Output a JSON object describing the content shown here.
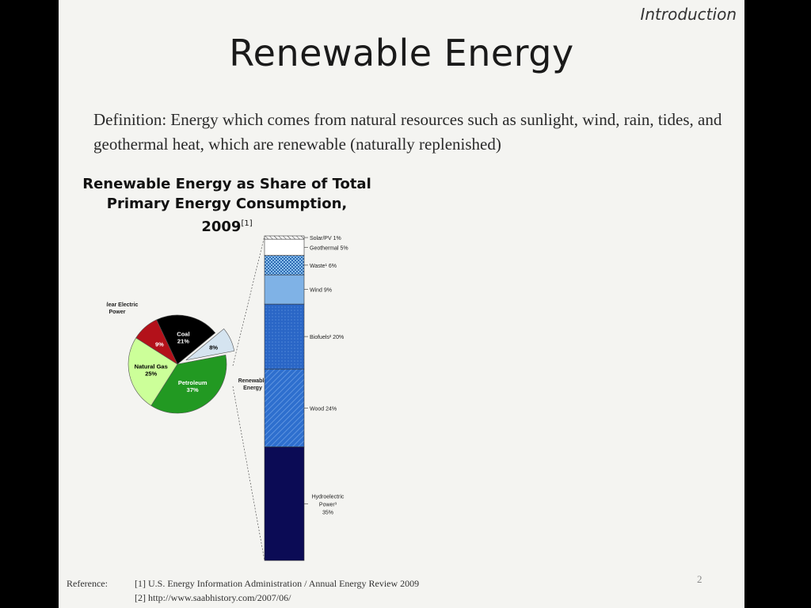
{
  "slide": {
    "section_label": "Introduction",
    "title": "Renewable Energy",
    "definition": "Definition: Energy which comes from natural resources such as sunlight, wind, rain, tides, and geothermal heat, which are renewable (naturally replenished)",
    "page_number": "2"
  },
  "references": {
    "label": "Reference:",
    "items": [
      "[1] U.S. Energy Information Administration / Annual Energy Review 2009",
      "[2] http://www.saabhistory.com/2007/06/"
    ]
  },
  "colors": {
    "coal": "#000000",
    "petroleum": "#229922",
    "natural_gas": "#ccff99",
    "nuclear": "#b3111a",
    "renewable": "#d5e4f0",
    "hydro": "#0b0b55",
    "wood": "#2e6fce",
    "biofuels": "#2a66c6",
    "wind": "#7fb2e6",
    "waste": "#4a8ac8",
    "geothermal": "#ffffff",
    "solar": "#ffffff"
  },
  "chart_data": [
    {
      "type": "pie",
      "title": "Renewable Energy as Share of Total Primary Energy Consumption, 2009",
      "title_line1": "Renewable Energy as Share of Total",
      "title_line2": "Primary Energy Consumption, 2009",
      "title_ref": "[1]",
      "slices": [
        {
          "label": "Coal",
          "value": 21,
          "display": "21%"
        },
        {
          "label": "Renewable Energy",
          "value": 8,
          "display": "8%"
        },
        {
          "label": "Petroleum",
          "value": 37,
          "display": "37%"
        },
        {
          "label": "Natural Gas",
          "value": 25,
          "display": "25%"
        },
        {
          "label": "Nuclear Electric Power",
          "value": 9,
          "display": "9%"
        }
      ]
    },
    {
      "type": "bar",
      "stacked": true,
      "segments": [
        {
          "label": "Hydroelectric Power³ 35%",
          "value": 35
        },
        {
          "label": "Wood 24%",
          "value": 24
        },
        {
          "label": "Biofuels² 20%",
          "value": 20
        },
        {
          "label": "Wind 9%",
          "value": 9
        },
        {
          "label": "Waste¹ 6%",
          "value": 6
        },
        {
          "label": "Geothermal 5%",
          "value": 5
        },
        {
          "label": "Solar/PV 1%",
          "value": 1
        }
      ]
    }
  ]
}
